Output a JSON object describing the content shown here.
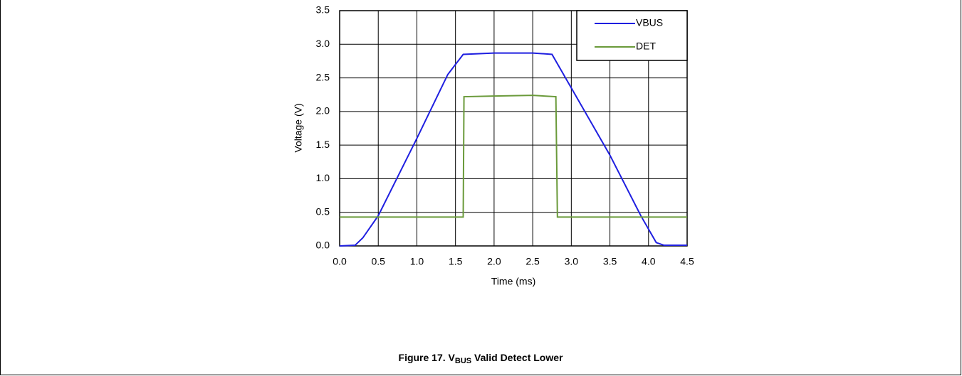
{
  "chart_data": {
    "type": "line",
    "xlabel": "Time (ms)",
    "ylabel": "Voltage (V)",
    "caption": [
      "Figure 17. V",
      "BUS",
      " Valid Detect Lower"
    ],
    "xlim": [
      0,
      4.5
    ],
    "ylim": [
      0,
      3.5
    ],
    "xticks": [
      {
        "value": 0,
        "label": "0.0"
      },
      0.5,
      {
        "value": 1,
        "label": "1.0"
      },
      1.5,
      {
        "value": 2,
        "label": "2.0"
      },
      2.5,
      {
        "value": 3,
        "label": "3.0"
      },
      3.5,
      {
        "value": 4,
        "label": "4.0"
      },
      4.5
    ],
    "yticks": [
      {
        "value": 0,
        "label": "0.0"
      },
      0.5,
      {
        "value": 1,
        "label": "1.0"
      },
      1.5,
      {
        "value": 2,
        "label": "2.0"
      },
      2.5,
      {
        "value": 3,
        "label": "3.0"
      },
      3.5
    ],
    "grid": true,
    "legend": "upper right",
    "series": [
      {
        "name": "VBUS",
        "color": "#1f1fe0",
        "x": [
          0,
          0.2,
          0.3,
          0.5,
          1.0,
          1.4,
          1.6,
          2.0,
          2.5,
          2.75,
          2.9,
          3.5,
          3.9,
          4.1,
          4.2,
          4.5
        ],
        "values": [
          0,
          0.01,
          0.12,
          0.45,
          1.6,
          2.55,
          2.85,
          2.87,
          2.87,
          2.85,
          2.55,
          1.35,
          0.45,
          0.05,
          0.01,
          0.01
        ]
      },
      {
        "name": "DET",
        "color": "#6a9a3a",
        "x": [
          0,
          0.5,
          1.6,
          1.61,
          2.0,
          2.5,
          2.8,
          2.82,
          4.5
        ],
        "values": [
          0.43,
          0.43,
          0.43,
          2.22,
          2.23,
          2.24,
          2.22,
          0.43,
          0.43
        ]
      }
    ]
  }
}
